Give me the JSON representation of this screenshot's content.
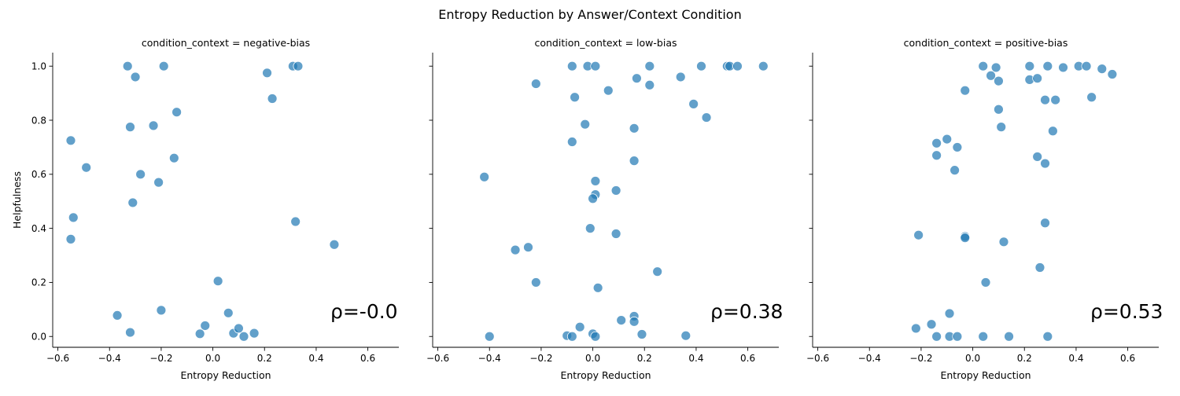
{
  "suptitle": "Entropy Reduction by Answer/Context Condition",
  "chart_data": [
    {
      "type": "scatter",
      "title": "condition_context = negative-bias",
      "xlabel": "Entropy Reduction",
      "ylabel": "Helpfulness",
      "xlim": [
        -0.62,
        0.72
      ],
      "ylim": [
        -0.04,
        1.05
      ],
      "xticks": [
        -0.6,
        -0.4,
        -0.2,
        0.0,
        0.2,
        0.4,
        0.6
      ],
      "xtick_labels": [
        "−0.6",
        "−0.4",
        "−0.2",
        "0.0",
        "0.2",
        "0.4",
        "0.6"
      ],
      "yticks": [
        0.0,
        0.2,
        0.4,
        0.6,
        0.8,
        1.0
      ],
      "ytick_labels": [
        "0.0",
        "0.2",
        "0.4",
        "0.6",
        "0.8",
        "1.0"
      ],
      "annotation": "ρ=-0.0",
      "color": "#1f77b4",
      "points": [
        [
          -0.33,
          1.0
        ],
        [
          -0.3,
          0.96
        ],
        [
          -0.19,
          1.0
        ],
        [
          0.21,
          0.975
        ],
        [
          0.31,
          1.0
        ],
        [
          0.33,
          1.0
        ],
        [
          0.23,
          0.88
        ],
        [
          -0.14,
          0.83
        ],
        [
          -0.32,
          0.775
        ],
        [
          -0.23,
          0.78
        ],
        [
          -0.55,
          0.725
        ],
        [
          -0.49,
          0.625
        ],
        [
          -0.28,
          0.6
        ],
        [
          -0.15,
          0.66
        ],
        [
          -0.21,
          0.57
        ],
        [
          -0.31,
          0.495
        ],
        [
          -0.54,
          0.44
        ],
        [
          -0.55,
          0.36
        ],
        [
          0.32,
          0.425
        ],
        [
          0.47,
          0.34
        ],
        [
          0.02,
          0.205
        ],
        [
          -0.37,
          0.078
        ],
        [
          -0.2,
          0.097
        ],
        [
          0.06,
          0.087
        ],
        [
          -0.32,
          0.015
        ],
        [
          -0.03,
          0.04
        ],
        [
          -0.05,
          0.01
        ],
        [
          0.08,
          0.012
        ],
        [
          0.1,
          0.03
        ],
        [
          0.12,
          0.0
        ],
        [
          0.16,
          0.012
        ]
      ]
    },
    {
      "type": "scatter",
      "title": "condition_context = low-bias",
      "xlabel": "Entropy Reduction",
      "ylabel": "",
      "xlim": [
        -0.62,
        0.72
      ],
      "ylim": [
        -0.04,
        1.05
      ],
      "xticks": [
        -0.6,
        -0.4,
        -0.2,
        0.0,
        0.2,
        0.4,
        0.6
      ],
      "xtick_labels": [
        "−0.6",
        "−0.4",
        "−0.2",
        "0.0",
        "0.2",
        "0.4",
        "0.6"
      ],
      "yticks": [
        0.0,
        0.2,
        0.4,
        0.6,
        0.8,
        1.0
      ],
      "ytick_labels": [
        "",
        "",
        "",
        "",
        "",
        ""
      ],
      "annotation": "ρ=0.38",
      "color": "#1f77b4",
      "points": [
        [
          -0.08,
          1.0
        ],
        [
          -0.02,
          1.0
        ],
        [
          0.01,
          1.0
        ],
        [
          0.22,
          1.0
        ],
        [
          0.42,
          1.0
        ],
        [
          0.52,
          1.0
        ],
        [
          0.53,
          1.0
        ],
        [
          0.56,
          1.0
        ],
        [
          0.66,
          1.0
        ],
        [
          0.17,
          0.955
        ],
        [
          0.34,
          0.96
        ],
        [
          -0.22,
          0.935
        ],
        [
          0.22,
          0.93
        ],
        [
          0.06,
          0.91
        ],
        [
          -0.07,
          0.885
        ],
        [
          0.39,
          0.86
        ],
        [
          0.44,
          0.81
        ],
        [
          -0.03,
          0.785
        ],
        [
          0.16,
          0.77
        ],
        [
          -0.08,
          0.72
        ],
        [
          0.16,
          0.65
        ],
        [
          -0.42,
          0.59
        ],
        [
          0.01,
          0.575
        ],
        [
          0.09,
          0.54
        ],
        [
          0.01,
          0.525
        ],
        [
          0.0,
          0.51
        ],
        [
          -0.01,
          0.4
        ],
        [
          0.09,
          0.38
        ],
        [
          -0.3,
          0.32
        ],
        [
          -0.25,
          0.33
        ],
        [
          0.25,
          0.24
        ],
        [
          -0.22,
          0.2
        ],
        [
          0.02,
          0.18
        ],
        [
          0.11,
          0.06
        ],
        [
          0.16,
          0.075
        ],
        [
          0.16,
          0.055
        ],
        [
          -0.05,
          0.035
        ],
        [
          -0.4,
          0.0
        ],
        [
          -0.1,
          0.003
        ],
        [
          -0.08,
          0.0
        ],
        [
          0.0,
          0.01
        ],
        [
          0.01,
          0.0
        ],
        [
          0.19,
          0.008
        ],
        [
          0.36,
          0.003
        ]
      ]
    },
    {
      "type": "scatter",
      "title": "condition_context = positive-bias",
      "xlabel": "Entropy Reduction",
      "ylabel": "",
      "xlim": [
        -0.62,
        0.72
      ],
      "ylim": [
        -0.04,
        1.05
      ],
      "xticks": [
        -0.6,
        -0.4,
        -0.2,
        0.0,
        0.2,
        0.4,
        0.6
      ],
      "xtick_labels": [
        "−0.6",
        "−0.4",
        "−0.2",
        "0.0",
        "0.2",
        "0.4",
        "0.6"
      ],
      "yticks": [
        0.0,
        0.2,
        0.4,
        0.6,
        0.8,
        1.0
      ],
      "ytick_labels": [
        "",
        "",
        "",
        "",
        "",
        ""
      ],
      "annotation": "ρ=0.53",
      "color": "#1f77b4",
      "points": [
        [
          0.04,
          1.0
        ],
        [
          0.09,
          0.995
        ],
        [
          0.22,
          1.0
        ],
        [
          0.29,
          1.0
        ],
        [
          0.35,
          0.995
        ],
        [
          0.41,
          1.0
        ],
        [
          0.44,
          1.0
        ],
        [
          0.5,
          0.99
        ],
        [
          0.54,
          0.97
        ],
        [
          0.07,
          0.965
        ],
        [
          0.1,
          0.945
        ],
        [
          0.22,
          0.95
        ],
        [
          0.25,
          0.955
        ],
        [
          -0.03,
          0.91
        ],
        [
          0.46,
          0.885
        ],
        [
          0.28,
          0.875
        ],
        [
          0.32,
          0.875
        ],
        [
          0.1,
          0.84
        ],
        [
          0.11,
          0.775
        ],
        [
          0.31,
          0.76
        ],
        [
          -0.1,
          0.73
        ],
        [
          -0.14,
          0.715
        ],
        [
          -0.06,
          0.7
        ],
        [
          -0.14,
          0.67
        ],
        [
          0.25,
          0.665
        ],
        [
          0.28,
          0.64
        ],
        [
          -0.07,
          0.615
        ],
        [
          -0.21,
          0.375
        ],
        [
          0.28,
          0.42
        ],
        [
          -0.03,
          0.37
        ],
        [
          -0.03,
          0.365
        ],
        [
          0.12,
          0.35
        ],
        [
          0.26,
          0.255
        ],
        [
          0.05,
          0.2
        ],
        [
          -0.09,
          0.085
        ],
        [
          -0.16,
          0.045
        ],
        [
          -0.22,
          0.03
        ],
        [
          -0.14,
          0.0
        ],
        [
          -0.09,
          0.0
        ],
        [
          -0.06,
          0.0
        ],
        [
          0.04,
          0.0
        ],
        [
          0.14,
          0.0
        ],
        [
          0.29,
          0.0
        ]
      ]
    }
  ]
}
